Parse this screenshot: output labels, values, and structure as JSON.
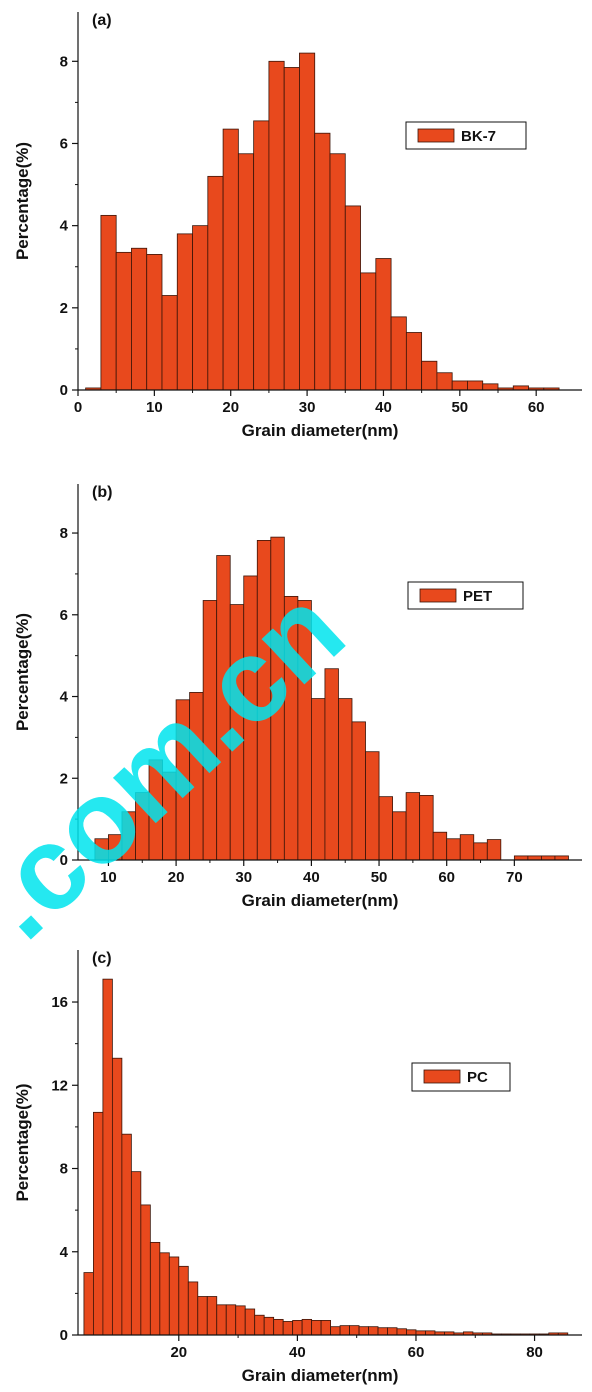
{
  "colors": {
    "bar_fill": "#E8491D",
    "bar_stroke": "#3a1408",
    "axis": "#111111",
    "watermark": "#00E5EE"
  },
  "watermark_text": ".com.cn",
  "chart_data": [
    {
      "type": "bar",
      "panel_label": "(a)",
      "legend": "BK-7",
      "legend_position": "top-right",
      "xlabel": "Grain diameter(nm)",
      "ylabel": "Percentage(%)",
      "xlim": [
        0,
        66
      ],
      "ylim": [
        0,
        9.2
      ],
      "xticks": [
        0,
        10,
        20,
        30,
        40,
        50,
        60
      ],
      "yticks": [
        0,
        2,
        4,
        6,
        8
      ],
      "bar_width": 2,
      "x": [
        2,
        4,
        6,
        8,
        10,
        12,
        14,
        16,
        18,
        20,
        22,
        24,
        26,
        28,
        30,
        32,
        34,
        36,
        38,
        40,
        42,
        44,
        46,
        48,
        50,
        52,
        54,
        56,
        58,
        60,
        62
      ],
      "values": [
        0.05,
        4.25,
        3.35,
        3.45,
        3.3,
        2.3,
        3.8,
        4.0,
        5.2,
        6.35,
        5.75,
        6.55,
        8.0,
        7.85,
        8.2,
        6.25,
        5.75,
        4.48,
        2.85,
        3.2,
        1.78,
        1.4,
        0.7,
        0.42,
        0.22,
        0.22,
        0.15,
        0.05,
        0.1,
        0.05,
        0.05
      ]
    },
    {
      "type": "bar",
      "panel_label": "(b)",
      "legend": "PET",
      "legend_position": "top-right",
      "xlabel": "Grain diameter(nm)",
      "ylabel": "Percentage(%)",
      "xlim": [
        5.5,
        80
      ],
      "ylim": [
        0,
        9.2
      ],
      "xticks": [
        10,
        20,
        30,
        40,
        50,
        60,
        70
      ],
      "yticks": [
        0,
        2,
        4,
        6,
        8
      ],
      "bar_width": 2,
      "x": [
        9,
        11,
        13,
        15,
        17,
        19,
        21,
        23,
        25,
        27,
        29,
        31,
        33,
        35,
        37,
        39,
        41,
        43,
        45,
        47,
        49,
        51,
        53,
        55,
        57,
        59,
        61,
        63,
        65,
        67,
        69,
        71,
        73,
        75,
        77
      ],
      "values": [
        0.52,
        0.62,
        1.18,
        1.65,
        2.45,
        2.15,
        3.92,
        4.1,
        6.35,
        7.45,
        6.25,
        6.95,
        7.82,
        7.9,
        6.45,
        6.35,
        3.95,
        4.68,
        3.95,
        3.38,
        2.65,
        1.55,
        1.18,
        1.65,
        1.58,
        0.68,
        0.52,
        0.62,
        0.42,
        0.5,
        0,
        0.1,
        0.1,
        0.1,
        0.1
      ]
    },
    {
      "type": "bar",
      "panel_label": "(c)",
      "legend": "PC",
      "legend_position": "top-right",
      "xlabel": "Grain diameter(nm)",
      "ylabel": "Percentage(%)",
      "xlim": [
        3,
        88
      ],
      "ylim": [
        0,
        18.5
      ],
      "xticks": [
        20,
        40,
        60,
        80
      ],
      "yticks": [
        0,
        4,
        8,
        12,
        16
      ],
      "bar_width": 1.6,
      "x": [
        4.8,
        6.4,
        8,
        9.6,
        11.2,
        12.8,
        14.4,
        16,
        17.6,
        19.2,
        20.8,
        22.4,
        24,
        25.6,
        27.2,
        28.8,
        30.4,
        32,
        33.6,
        35.2,
        36.8,
        38.4,
        40,
        41.6,
        43.2,
        44.8,
        46.4,
        48,
        49.6,
        51.2,
        52.8,
        54.4,
        56,
        57.6,
        59.2,
        60.8,
        62.4,
        64,
        65.6,
        67.2,
        68.8,
        70.4,
        72,
        73.6,
        75.2,
        76.8,
        78.4,
        80,
        81.6,
        83.2,
        84.8
      ],
      "values": [
        3.0,
        10.7,
        17.1,
        13.3,
        9.65,
        7.85,
        6.25,
        4.45,
        3.95,
        3.75,
        3.3,
        2.55,
        1.85,
        1.85,
        1.45,
        1.45,
        1.4,
        1.25,
        0.95,
        0.85,
        0.75,
        0.65,
        0.7,
        0.75,
        0.7,
        0.7,
        0.4,
        0.45,
        0.45,
        0.4,
        0.4,
        0.35,
        0.35,
        0.3,
        0.25,
        0.2,
        0.2,
        0.15,
        0.15,
        0.1,
        0.15,
        0.1,
        0.1,
        0.05,
        0.05,
        0.05,
        0.05,
        0.05,
        0.05,
        0.1,
        0.1
      ]
    }
  ]
}
